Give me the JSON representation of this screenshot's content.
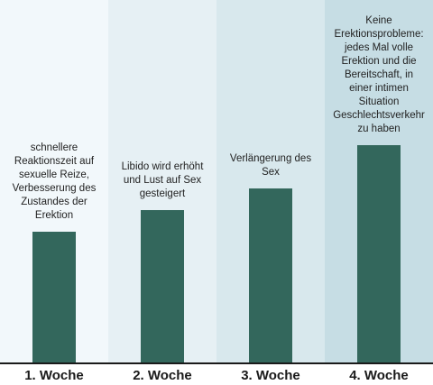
{
  "chart_data": {
    "type": "bar",
    "categories": [
      "1. Woche",
      "2. Woche",
      "3. Woche",
      "4. Woche"
    ],
    "values": [
      36,
      42,
      48,
      60
    ],
    "ylim": [
      0,
      100
    ],
    "annotations": [
      [
        "schnellere",
        "Reaktionszeit auf",
        "sexuelle Reize,",
        "Verbesserung des",
        "Zustandes der",
        "Erektion"
      ],
      [
        "Libido wird erhöht",
        "und Lust auf Sex",
        "gesteigert"
      ],
      [
        "Verlängerung des",
        "Sex"
      ],
      [
        "Keine",
        "Erektionsprobleme:",
        "jedes Mal volle",
        "Erektion und die",
        "Bereitschaft, in",
        "einer intimen",
        "Situation",
        "Geschlechtsverkehr",
        "zu haben"
      ]
    ],
    "grid": false,
    "legend": "none"
  },
  "colors": {
    "bar": "#33675c",
    "column_backgrounds": [
      "#f2f8fb",
      "#e6f0f4",
      "#d8e8ed",
      "#c6dde4"
    ],
    "axis": "#1a1a1a"
  }
}
